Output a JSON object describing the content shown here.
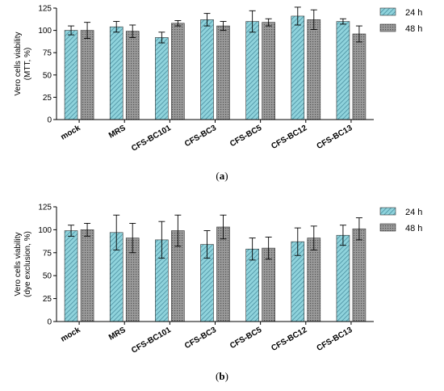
{
  "colors": {
    "series_24h": "#8fd3dc",
    "series_24h_stripe": "#4a8fa0",
    "series_48h": "#9a9a9a",
    "series_48h_dots": "#555555",
    "axis": "#000000"
  },
  "chart_data": [
    {
      "type": "bar",
      "panel_caption": "a",
      "ylabel_lines": [
        "Vero cells viability",
        "(MTT, %)"
      ],
      "categories": [
        "mock",
        "MRS",
        "CFS-BC101",
        "CFS-BC3",
        "CFS-BC5",
        "CFS-BC12",
        "CFS-BC13"
      ],
      "ylim": [
        0,
        125
      ],
      "yticks": [
        "0",
        "25",
        "50",
        "75",
        "100",
        "125"
      ],
      "legend_position": "top-right",
      "series": [
        {
          "name": "24 h",
          "values": [
            100,
            104,
            92,
            112,
            110,
            116,
            110
          ],
          "errors": [
            5,
            6,
            6,
            7,
            12,
            10,
            3
          ]
        },
        {
          "name": "48 h",
          "values": [
            100,
            99,
            108,
            105,
            109,
            112,
            96
          ],
          "errors": [
            9,
            7,
            3,
            5,
            4,
            11,
            9
          ]
        }
      ]
    },
    {
      "type": "bar",
      "panel_caption": "b",
      "ylabel_lines": [
        "Vero cells viability",
        "(dye exclusion, %)"
      ],
      "categories": [
        "mock",
        "MRS",
        "CFS-BC101",
        "CFS-BC3",
        "CFS-BC5",
        "CFS-BC12",
        "CFS-BC13"
      ],
      "ylim": [
        0,
        125
      ],
      "yticks": [
        "0",
        "25",
        "50",
        "75",
        "100",
        "125"
      ],
      "legend_position": "top-right",
      "series": [
        {
          "name": "24 h",
          "values": [
            99,
            97,
            89,
            84,
            79,
            87,
            94
          ],
          "errors": [
            6,
            19,
            20,
            15,
            12,
            15,
            11
          ]
        },
        {
          "name": "48 h",
          "values": [
            100,
            91,
            99,
            103,
            80,
            91,
            101
          ],
          "errors": [
            7,
            16,
            17,
            13,
            12,
            13,
            12
          ]
        }
      ]
    }
  ]
}
